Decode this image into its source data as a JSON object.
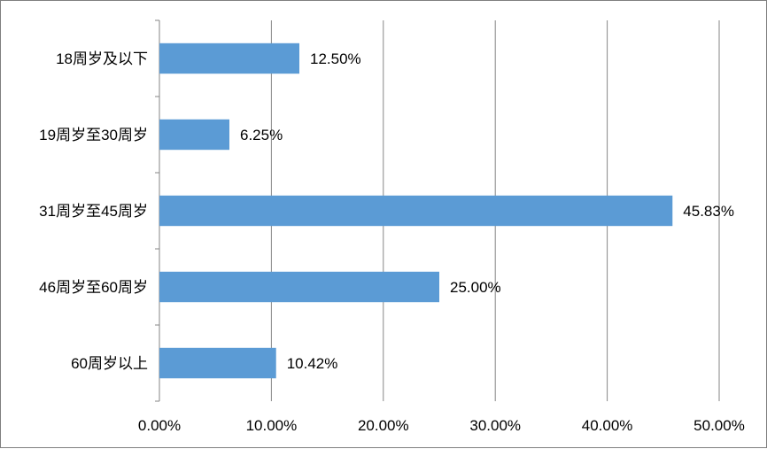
{
  "chart_data": {
    "type": "bar",
    "orientation": "horizontal",
    "categories": [
      "18周岁及以下",
      "19周岁至30周岁",
      "31周岁至45周岁",
      "46周岁至60周岁",
      "60周岁以上"
    ],
    "values": [
      12.5,
      6.25,
      45.83,
      25.0,
      10.42
    ],
    "value_labels": [
      "12.50%",
      "6.25%",
      "45.83%",
      "25.00%",
      "10.42%"
    ],
    "xticks": [
      "0.00%",
      "10.00%",
      "20.00%",
      "30.00%",
      "40.00%",
      "50.00%"
    ],
    "xlim": [
      0,
      50
    ],
    "title": "",
    "xlabel": "",
    "ylabel": "",
    "grid": "vertical",
    "bar_color": "#5b9bd5",
    "legend": "none"
  }
}
